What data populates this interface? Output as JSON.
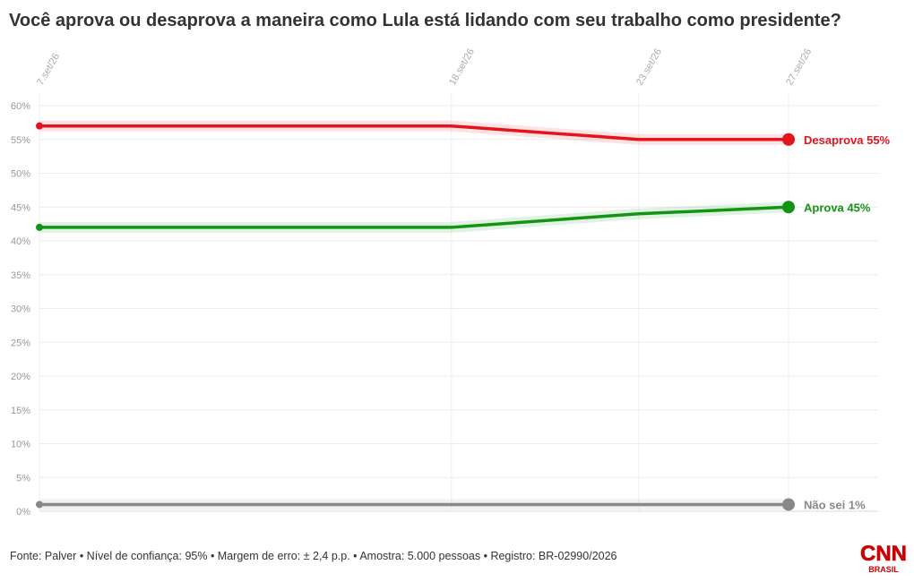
{
  "title": "Você aprova ou desaprova a maneira como Lula está lidando com seu trabalho como presidente?",
  "footer": {
    "source": "Fonte: Palver • Nível de confiança: 95% • Margem de erro: ± 2,4 p.p. • Amostra: 5.000 pessoas • Registro: BR-02990/2026"
  },
  "logo": {
    "top": "CNN",
    "bottom": "BRASIL",
    "color": "#cc0000"
  },
  "chart_data": {
    "type": "line",
    "title": "Você aprova ou desaprova a maneira como Lula está lidando com seu trabalho como presidente?",
    "x": [
      "7.set/26",
      "18.set/26",
      "23.set/26",
      "27.set/26"
    ],
    "x_days": [
      7,
      18,
      23,
      27
    ],
    "ylim": [
      0,
      60
    ],
    "yticks": [
      0,
      5,
      10,
      15,
      20,
      25,
      30,
      35,
      40,
      45,
      50,
      55,
      60
    ],
    "ytick_labels": [
      "0%",
      "5%",
      "10%",
      "15%",
      "20%",
      "25%",
      "30%",
      "35%",
      "40%",
      "45%",
      "50%",
      "55%",
      "60%"
    ],
    "grid": true,
    "series": [
      {
        "name": "Desaprova",
        "end_label": "Desaprova 55%",
        "color": "#e3141b",
        "values": [
          57,
          57,
          55,
          55
        ]
      },
      {
        "name": "Aprova",
        "end_label": "Aprova 45%",
        "color": "#149414",
        "values": [
          42,
          42,
          44,
          45
        ]
      },
      {
        "name": "Não sei",
        "end_label": "Não sei 1%",
        "color": "#888888",
        "values": [
          1,
          1,
          1,
          1
        ]
      }
    ]
  }
}
